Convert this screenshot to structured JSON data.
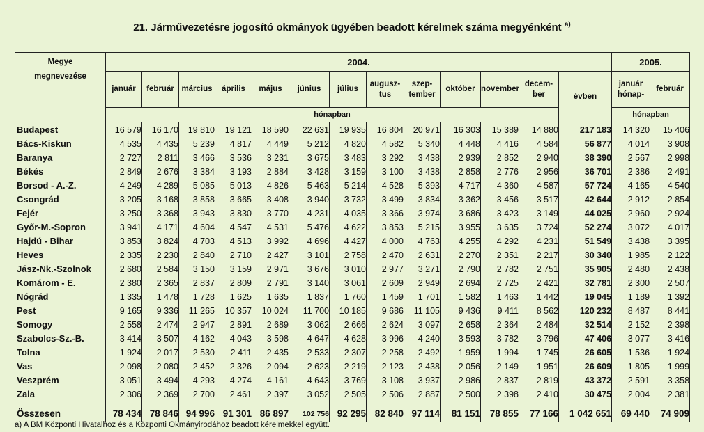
{
  "title": "21. Járművezetésre jogosító okmányok ügyében beadott kérelmek száma megyénként",
  "title_note": "a)",
  "header": {
    "county_label_1": "Megye",
    "county_label_2": "megnevezése",
    "year_2004": "2004.",
    "year_2005": "2005.",
    "months_2004": [
      "január",
      "február",
      "március",
      "április",
      "május",
      "június",
      "július",
      "augusz-\ntus",
      "szep-\ntember",
      "október",
      "november",
      "decem-\nber"
    ],
    "evben": "évben",
    "months_2005": [
      "január\nhónap-",
      "február"
    ],
    "honapban_2004": "hónapban",
    "honapban_2005": "hónapban"
  },
  "rows": [
    {
      "name": "Budapest",
      "values": [
        "16 579",
        "16 170",
        "19 810",
        "19 121",
        "18 590",
        "22 631",
        "19 935",
        "16 804",
        "20 971",
        "16 303",
        "15 389",
        "14 880",
        "217 183",
        "14 320",
        "15 406"
      ]
    },
    {
      "name": "Bács-Kiskun",
      "values": [
        "4 535",
        "4 435",
        "5 239",
        "4 817",
        "4 449",
        "5 212",
        "4 820",
        "4 582",
        "5 340",
        "4 448",
        "4 416",
        "4 584",
        "56 877",
        "4 014",
        "3 908"
      ]
    },
    {
      "name": "Baranya",
      "values": [
        "2 727",
        "2 811",
        "3 466",
        "3 536",
        "3 231",
        "3 675",
        "3 483",
        "3 292",
        "3 438",
        "2 939",
        "2 852",
        "2 940",
        "38 390",
        "2 567",
        "2 998"
      ]
    },
    {
      "name": "Békés",
      "values": [
        "2 849",
        "2 676",
        "3 384",
        "3 193",
        "2 884",
        "3 428",
        "3 159",
        "3 100",
        "3 438",
        "2 858",
        "2 776",
        "2 956",
        "36 701",
        "2 386",
        "2 491"
      ]
    },
    {
      "name": "Borsod - A.-Z.",
      "values": [
        "4 249",
        "4 289",
        "5 085",
        "5 013",
        "4 826",
        "5 463",
        "5 214",
        "4 528",
        "5 393",
        "4 717",
        "4 360",
        "4 587",
        "57 724",
        "4 165",
        "4 540"
      ]
    },
    {
      "name": "Csongrád",
      "values": [
        "3 205",
        "3 168",
        "3 858",
        "3 665",
        "3 408",
        "3 940",
        "3 732",
        "3 499",
        "3 834",
        "3 362",
        "3 456",
        "3 517",
        "42 644",
        "2 912",
        "2 854"
      ]
    },
    {
      "name": "Fejér",
      "values": [
        "3 250",
        "3 368",
        "3 943",
        "3 830",
        "3 770",
        "4 231",
        "4 035",
        "3 366",
        "3 974",
        "3 686",
        "3 423",
        "3 149",
        "44 025",
        "2 960",
        "2 924"
      ]
    },
    {
      "name": "Győr-M.-Sopron",
      "values": [
        "3 941",
        "4 171",
        "4 604",
        "4 547",
        "4 531",
        "5 476",
        "4 622",
        "3 853",
        "5 215",
        "3 955",
        "3 635",
        "3 724",
        "52 274",
        "3 072",
        "4 017"
      ]
    },
    {
      "name": "Hajdú - Bihar",
      "values": [
        "3 853",
        "3 824",
        "4 703",
        "4 513",
        "3 992",
        "4 696",
        "4 427",
        "4 000",
        "4 763",
        "4 255",
        "4 292",
        "4 231",
        "51 549",
        "3 438",
        "3 395"
      ]
    },
    {
      "name": "Heves",
      "values": [
        "2 335",
        "2 230",
        "2 840",
        "2 710",
        "2 427",
        "3 101",
        "2 758",
        "2 470",
        "2 631",
        "2 270",
        "2 351",
        "2 217",
        "30 340",
        "1 985",
        "2 122"
      ]
    },
    {
      "name": "Jász-Nk.-Szolnok",
      "values": [
        "2 680",
        "2 584",
        "3 150",
        "3 159",
        "2 971",
        "3 676",
        "3 010",
        "2 977",
        "3 271",
        "2 790",
        "2 782",
        "2 751",
        "35 905",
        "2 480",
        "2 438"
      ]
    },
    {
      "name": "Komárom - E.",
      "values": [
        "2 380",
        "2 365",
        "2 837",
        "2 809",
        "2 791",
        "3 140",
        "3 061",
        "2 609",
        "2 949",
        "2 694",
        "2 725",
        "2 421",
        "32 781",
        "2 300",
        "2 507"
      ]
    },
    {
      "name": "Nógrád",
      "values": [
        "1 335",
        "1 478",
        "1 728",
        "1 625",
        "1 635",
        "1 837",
        "1 760",
        "1 459",
        "1 701",
        "1 582",
        "1 463",
        "1 442",
        "19 045",
        "1 189",
        "1 392"
      ]
    },
    {
      "name": "Pest",
      "values": [
        "9 165",
        "9 336",
        "11 265",
        "10 357",
        "10 024",
        "11 700",
        "10 185",
        "9 686",
        "11 105",
        "9 436",
        "9 411",
        "8 562",
        "120 232",
        "8 487",
        "8 441"
      ]
    },
    {
      "name": "Somogy",
      "values": [
        "2 558",
        "2 474",
        "2 947",
        "2 891",
        "2 689",
        "3 062",
        "2 666",
        "2 624",
        "3 097",
        "2 658",
        "2 364",
        "2 484",
        "32 514",
        "2 152",
        "2 398"
      ]
    },
    {
      "name": "Szabolcs-Sz.-B.",
      "values": [
        "3 414",
        "3 507",
        "4 162",
        "4 043",
        "3 598",
        "4 647",
        "4 628",
        "3 996",
        "4 240",
        "3 593",
        "3 782",
        "3 796",
        "47 406",
        "3 077",
        "3 416"
      ]
    },
    {
      "name": "Tolna",
      "values": [
        "1 924",
        "2 017",
        "2 530",
        "2 411",
        "2 435",
        "2 533",
        "2 307",
        "2 258",
        "2 492",
        "1 959",
        "1 994",
        "1 745",
        "26 605",
        "1 536",
        "1 924"
      ]
    },
    {
      "name": "Vas",
      "values": [
        "2 098",
        "2 080",
        "2 452",
        "2 326",
        "2 094",
        "2 623",
        "2 219",
        "2 123",
        "2 438",
        "2 056",
        "2 149",
        "1 951",
        "26 609",
        "1 805",
        "1 999"
      ]
    },
    {
      "name": "Veszprém",
      "values": [
        "3 051",
        "3 494",
        "4 293",
        "4 274",
        "4 161",
        "4 643",
        "3 769",
        "3 108",
        "3 937",
        "2 986",
        "2 837",
        "2 819",
        "43 372",
        "2 591",
        "3 358"
      ]
    },
    {
      "name": "Zala",
      "values": [
        "2 306",
        "2 369",
        "2 700",
        "2 461",
        "2 397",
        "3 052",
        "2 505",
        "2 506",
        "2 887",
        "2 500",
        "2 398",
        "2 410",
        "30 475",
        "2 004",
        "2 381"
      ]
    }
  ],
  "total": {
    "name": "Összesen",
    "values": [
      "78 434",
      "78 846",
      "94 996",
      "91 301",
      "86 897",
      "102 756",
      "92 295",
      "82 840",
      "97 114",
      "81 151",
      "78 855",
      "77 166",
      "1 042 651",
      "69 440",
      "74 909"
    ]
  },
  "footnote": "a) A BM Központi Hivatalhoz és a Központi Okmányirodához beadott kérelmekkel együtt."
}
